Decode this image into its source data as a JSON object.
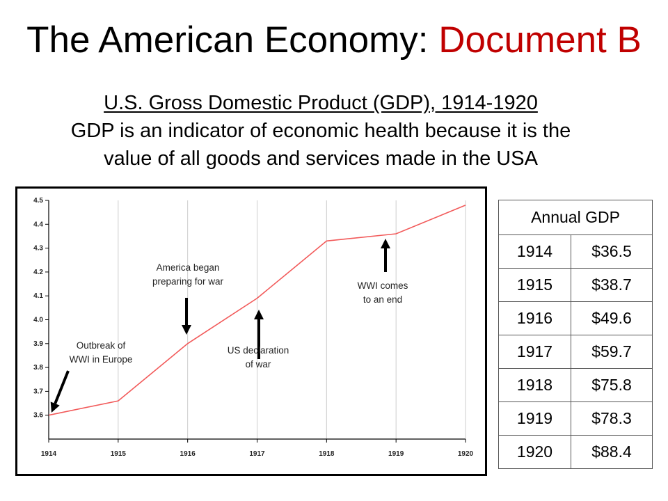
{
  "slide": {
    "title_main": "The American Economy: ",
    "title_accent": "Document B",
    "subtitle_line1": "U.S. Gross Domestic Product (GDP), 1914-1920",
    "subtitle_line2": "GDP is an indicator of economic health because it is the",
    "subtitle_line3": "value of all goods and services made in the USA",
    "colors": {
      "accent": "#c00000",
      "line": "#f25a5a",
      "grid": "#cccccc"
    }
  },
  "chart_data": {
    "type": "line",
    "x": [
      1914,
      1915,
      1916,
      1917,
      1918,
      1919,
      1920
    ],
    "series": [
      {
        "name": "GDP",
        "values": [
          3.6,
          3.66,
          3.9,
          4.09,
          4.33,
          4.36,
          4.48
        ]
      }
    ],
    "ylim": [
      3.5,
      4.5
    ],
    "yticks": [
      "3.6",
      "3.7",
      "3.8",
      "3.9",
      "4.0",
      "4.1",
      "4.2",
      "4.3",
      "4.4",
      "4.5"
    ],
    "xticks": [
      "1914",
      "1915",
      "1916",
      "1917",
      "1918",
      "1919",
      "1920"
    ],
    "grid": true,
    "annotations": [
      {
        "line1": "Outbreak of",
        "line2": "WWI in Europe",
        "year": 1914
      },
      {
        "line1": "America began",
        "line2": "preparing for war",
        "year": 1916
      },
      {
        "line1": "US declaration",
        "line2": "of war",
        "year": 1917
      },
      {
        "line1": "WWI comes",
        "line2": "to an end",
        "year": 1919
      }
    ]
  },
  "table": {
    "header": "Annual GDP",
    "rows": [
      {
        "year": "1914",
        "value": "$36.5"
      },
      {
        "year": "1915",
        "value": "$38.7"
      },
      {
        "year": "1916",
        "value": "$49.6"
      },
      {
        "year": "1917",
        "value": "$59.7"
      },
      {
        "year": "1918",
        "value": "$75.8"
      },
      {
        "year": "1919",
        "value": "$78.3"
      },
      {
        "year": "1920",
        "value": "$88.4"
      }
    ]
  }
}
